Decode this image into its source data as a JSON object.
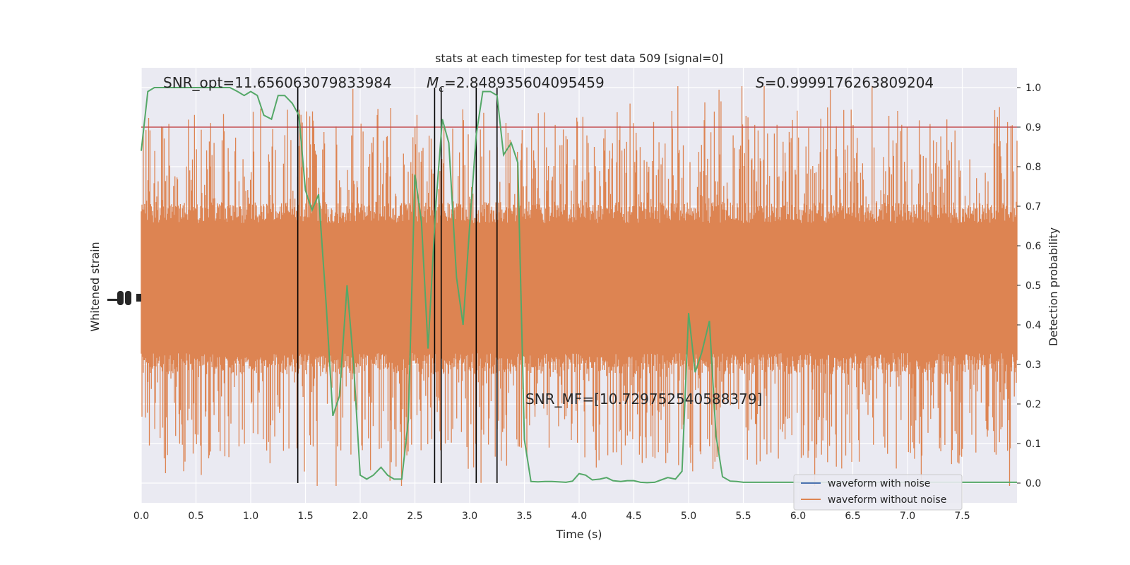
{
  "chart_data": {
    "type": "line",
    "title": "stats at each timestep for test data 509 [signal=0]",
    "xlabel": "Time (s)",
    "ylabel_left": "Whitened strain",
    "ylabel_right": "Detection probability",
    "xlim": [
      0,
      8
    ],
    "ylim_right": [
      -0.05,
      1.05
    ],
    "x_ticks": [
      "0.0",
      "0.5",
      "1.0",
      "1.5",
      "2.0",
      "2.5",
      "3.0",
      "3.5",
      "4.0",
      "4.5",
      "5.0",
      "5.5",
      "6.0",
      "6.5",
      "7.0",
      "7.5"
    ],
    "y_ticks_right": [
      "0.0",
      "0.1",
      "0.2",
      "0.3",
      "0.4",
      "0.5",
      "0.6",
      "0.7",
      "0.8",
      "0.9",
      "1.0"
    ],
    "grid": true,
    "annotations": {
      "snr_opt": "SNR_opt=11.656063079833984",
      "mc_symbol": "M",
      "mc_sub": "c",
      "mc_value": "=2.848935604095459",
      "s_symbol": "S",
      "s_value": "=0.9999176263809204",
      "snr_mf": "SNR_MF=[10.729752540588379]"
    },
    "threshold": 0.9,
    "vertical_lines": [
      1.43,
      2.68,
      2.74,
      3.06,
      3.25
    ],
    "legend": {
      "placement": "lower-right",
      "entries": [
        {
          "label": "waveform with noise",
          "color": "#4c72b0"
        },
        {
          "label": "waveform without noise",
          "color": "#dd8452"
        }
      ]
    },
    "series": [
      {
        "name": "waveform with noise",
        "color": "#4c72b0"
      },
      {
        "name": "waveform without noise",
        "color": "#dd8452"
      },
      {
        "color": "#55a868",
        "x": [
          0,
          0.06,
          0.12,
          0.19,
          0.25,
          0.31,
          0.38,
          0.44,
          0.5,
          0.56,
          0.62,
          0.69,
          0.75,
          0.81,
          0.88,
          0.94,
          1.0,
          1.06,
          1.12,
          1.19,
          1.25,
          1.31,
          1.38,
          1.44,
          1.5,
          1.56,
          1.62,
          1.69,
          1.75,
          1.81,
          1.88,
          1.94,
          2.0,
          2.06,
          2.12,
          2.19,
          2.25,
          2.31,
          2.38,
          2.44,
          2.5,
          2.56,
          2.62,
          2.69,
          2.75,
          2.81,
          2.88,
          2.94,
          3.0,
          3.06,
          3.12,
          3.19,
          3.25,
          3.31,
          3.38,
          3.44,
          3.5,
          3.56,
          3.62,
          3.69,
          3.75,
          3.81,
          3.88,
          3.94,
          4.0,
          4.06,
          4.12,
          4.19,
          4.25,
          4.31,
          4.38,
          4.44,
          4.5,
          4.56,
          4.62,
          4.69,
          4.75,
          4.81,
          4.88,
          4.94,
          5.0,
          5.06,
          5.12,
          5.19,
          5.25,
          5.31,
          5.38,
          5.44,
          5.5,
          5.56,
          5.62,
          5.69,
          5.75,
          5.81,
          5.88,
          5.94,
          6.0,
          6.06,
          6.12,
          6.19,
          6.25,
          6.31,
          6.38,
          6.44,
          6.5,
          6.56,
          6.62,
          6.69,
          6.75,
          6.81,
          6.88,
          6.94,
          7.0,
          7.06,
          7.12,
          7.19,
          7.25,
          7.31,
          7.38,
          7.44,
          7.5,
          7.56,
          7.62,
          7.69,
          7.75,
          7.81,
          7.88,
          7.94,
          8.0
        ],
        "values": [
          0.84,
          0.99,
          1.0,
          1.0,
          1.0,
          1.0,
          1.0,
          1.0,
          1.0,
          1.0,
          1.0,
          1.0,
          1.0,
          1.0,
          0.99,
          0.98,
          0.99,
          0.98,
          0.93,
          0.92,
          0.98,
          0.98,
          0.96,
          0.93,
          0.74,
          0.69,
          0.73,
          0.45,
          0.17,
          0.22,
          0.5,
          0.3,
          0.02,
          0.01,
          0.02,
          0.04,
          0.02,
          0.01,
          0.01,
          0.16,
          0.78,
          0.66,
          0.34,
          0.7,
          0.92,
          0.86,
          0.52,
          0.4,
          0.65,
          0.88,
          0.99,
          0.99,
          0.98,
          0.83,
          0.86,
          0.81,
          0.11,
          0.004,
          0.003,
          0.004,
          0.004,
          0.003,
          0.002,
          0.005,
          0.024,
          0.02,
          0.008,
          0.01,
          0.014,
          0.006,
          0.004,
          0.006,
          0.006,
          0.002,
          0.001,
          0.002,
          0.008,
          0.014,
          0.01,
          0.03,
          0.43,
          0.28,
          0.33,
          0.41,
          0.12,
          0.016,
          0.005,
          0.004,
          0.002,
          0.002,
          0.002,
          0.002,
          0.002,
          0.002,
          0.002,
          0.002,
          0.002,
          0.002,
          0.002,
          0.002,
          0.002,
          0.002,
          0.002,
          0.002,
          0.002,
          0.002,
          0.002,
          0.002,
          0.002,
          0.002,
          0.002,
          0.002,
          0.002,
          0.002,
          0.002,
          0.002,
          0.002,
          0.002,
          0.002,
          0.002,
          0.002,
          0.002,
          0.002,
          0.002,
          0.002,
          0.002,
          0.002,
          0.002,
          0.002
        ]
      }
    ]
  }
}
